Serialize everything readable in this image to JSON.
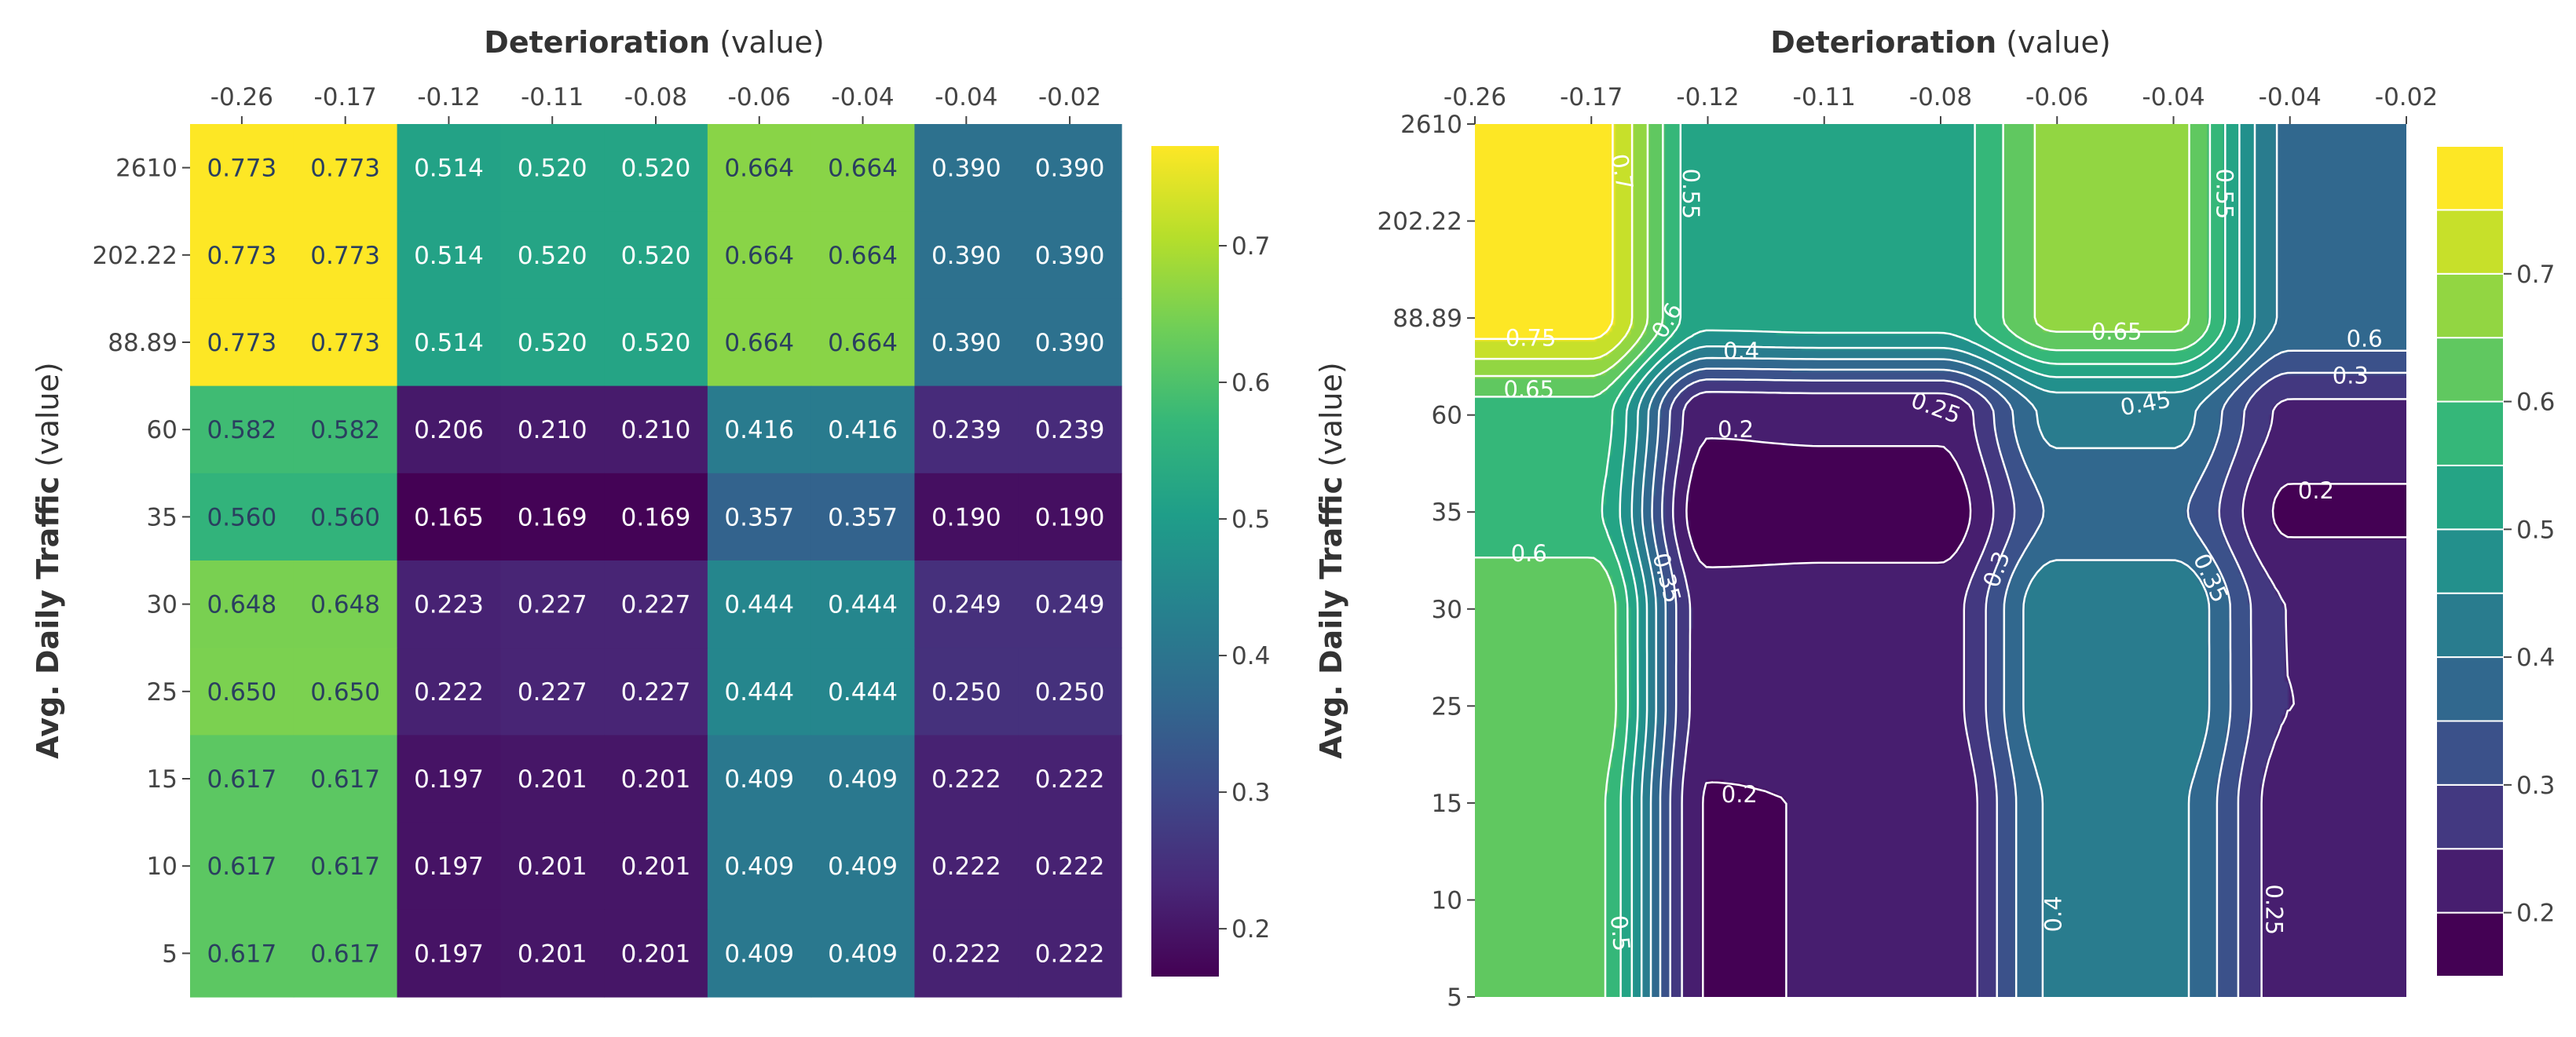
{
  "chart_data": [
    {
      "type": "heatmap",
      "title": "",
      "xlabel_bold": "Deterioration",
      "xlabel_rest": " (value)",
      "ylabel_bold": "Avg. Daily Traffic",
      "ylabel_rest": " (value)",
      "x_categories": [
        "-0.26",
        "-0.17",
        "-0.12",
        "-0.11",
        "-0.08",
        "-0.06",
        "-0.04",
        "-0.04",
        "-0.02"
      ],
      "y_categories": [
        "2610",
        "202.22",
        "88.89",
        "60",
        "35",
        "30",
        "25",
        "15",
        "10",
        "5"
      ],
      "z": [
        [
          0.773,
          0.773,
          0.514,
          0.52,
          0.52,
          0.664,
          0.664,
          0.39,
          0.39
        ],
        [
          0.773,
          0.773,
          0.514,
          0.52,
          0.52,
          0.664,
          0.664,
          0.39,
          0.39
        ],
        [
          0.773,
          0.773,
          0.514,
          0.52,
          0.52,
          0.664,
          0.664,
          0.39,
          0.39
        ],
        [
          0.582,
          0.582,
          0.206,
          0.21,
          0.21,
          0.416,
          0.416,
          0.239,
          0.239
        ],
        [
          0.56,
          0.56,
          0.165,
          0.169,
          0.169,
          0.357,
          0.357,
          0.19,
          0.19
        ],
        [
          0.648,
          0.648,
          0.223,
          0.227,
          0.227,
          0.444,
          0.444,
          0.249,
          0.249
        ],
        [
          0.65,
          0.65,
          0.222,
          0.227,
          0.227,
          0.444,
          0.444,
          0.25,
          0.25
        ],
        [
          0.617,
          0.617,
          0.197,
          0.201,
          0.201,
          0.409,
          0.409,
          0.222,
          0.222
        ],
        [
          0.617,
          0.617,
          0.197,
          0.201,
          0.201,
          0.409,
          0.409,
          0.222,
          0.222
        ],
        [
          0.617,
          0.617,
          0.197,
          0.201,
          0.201,
          0.409,
          0.409,
          0.222,
          0.222
        ]
      ],
      "zrange": [
        0.165,
        0.773
      ],
      "colorscale": "viridis",
      "colorbar_ticks": [
        "0.2",
        "0.3",
        "0.4",
        "0.5",
        "0.6",
        "0.7"
      ]
    },
    {
      "type": "contour",
      "title": "",
      "xlabel_bold": "Deterioration",
      "xlabel_rest": " (value)",
      "ylabel_bold": "Avg. Daily Traffic",
      "ylabel_rest": " (value)",
      "x_categories": [
        "-0.26",
        "-0.17",
        "-0.12",
        "-0.11",
        "-0.08",
        "-0.06",
        "-0.04",
        "-0.04",
        "-0.02"
      ],
      "y_categories": [
        "2610",
        "202.22",
        "88.89",
        "60",
        "35",
        "30",
        "25",
        "15",
        "10",
        "5"
      ],
      "contour_start": 0.2,
      "contour_end": 0.75,
      "contour_step": 0.05,
      "contour_labels": [
        "0.7",
        "0.55",
        "0.6",
        "0.55",
        "0.75",
        "0.6",
        "0.4",
        "0.65",
        "0.65",
        "0.25",
        "0.45",
        "0.3",
        "0.2",
        "0.2",
        "0.6",
        "0.35",
        "0.3",
        "0.35",
        "0.2",
        "0.5",
        "0.4",
        "0.25"
      ],
      "colorbar_ticks": [
        "0.2",
        "0.3",
        "0.4",
        "0.5",
        "0.6",
        "0.7"
      ]
    }
  ]
}
